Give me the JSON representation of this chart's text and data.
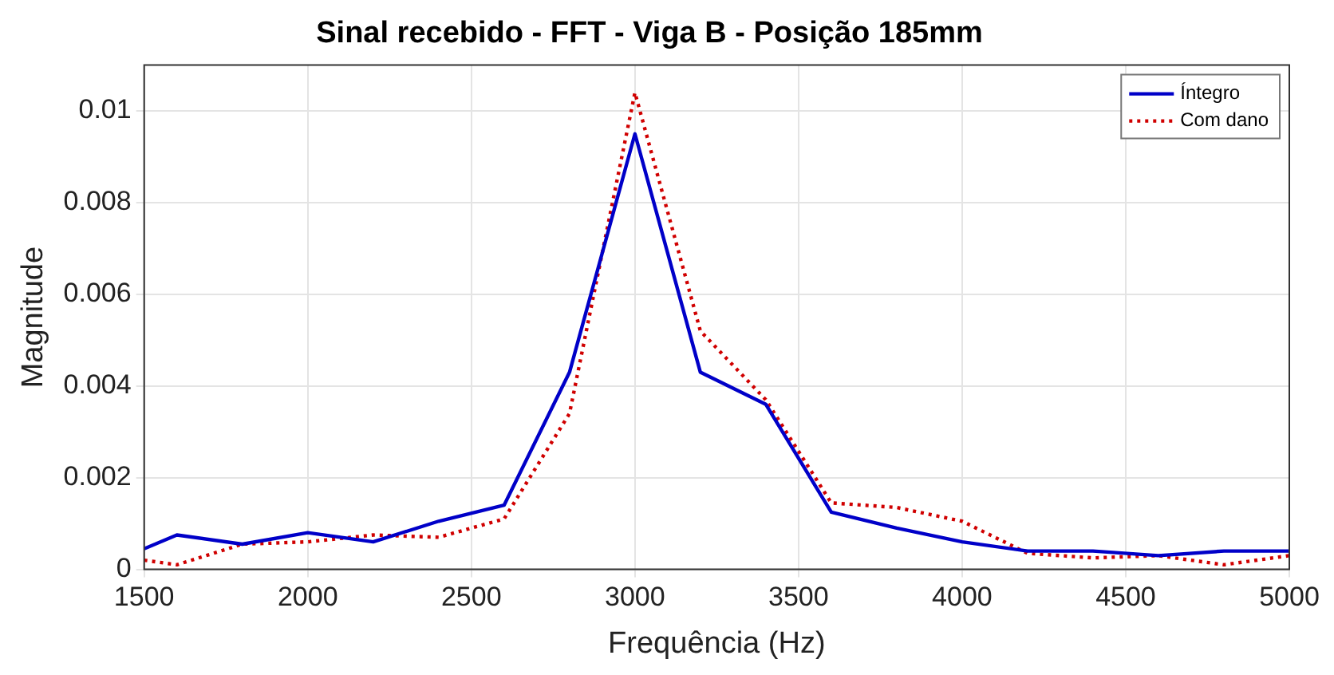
{
  "chart_data": {
    "type": "line",
    "title": "Sinal recebido - FFT - Viga B - Posição 185mm",
    "xlabel": "Frequência (Hz)",
    "ylabel": "Magnitude",
    "x": [
      1500,
      1600,
      1800,
      2000,
      2200,
      2400,
      2600,
      2800,
      3000,
      3200,
      3400,
      3600,
      3800,
      4000,
      4200,
      4400,
      4600,
      4800,
      5000
    ],
    "series": [
      {
        "name": "Íntegro",
        "color": "#0000c8",
        "line_style": "solid",
        "values": [
          0.00045,
          0.00075,
          0.00055,
          0.0008,
          0.0006,
          0.00105,
          0.0014,
          0.0043,
          0.0095,
          0.0043,
          0.0036,
          0.00125,
          0.0009,
          0.0006,
          0.0004,
          0.0004,
          0.0003,
          0.0004,
          0.0004
        ]
      },
      {
        "name": "Com dano",
        "color": "#d00000",
        "line_style": "dotted",
        "values": [
          0.0002,
          0.0001,
          0.00055,
          0.0006,
          0.00075,
          0.0007,
          0.0011,
          0.0034,
          0.0104,
          0.0052,
          0.0037,
          0.00145,
          0.00135,
          0.00105,
          0.00035,
          0.00025,
          0.0003,
          0.0001,
          0.0003
        ]
      }
    ],
    "xlim": [
      1500,
      5000
    ],
    "xticks": [
      1500,
      2000,
      2500,
      3000,
      3500,
      4000,
      4500,
      5000
    ],
    "ylim": [
      0,
      0.011
    ],
    "yticks": [
      0,
      0.002,
      0.004,
      0.006,
      0.008,
      0.01
    ],
    "grid": true,
    "legend": "top right",
    "marker": "none"
  }
}
